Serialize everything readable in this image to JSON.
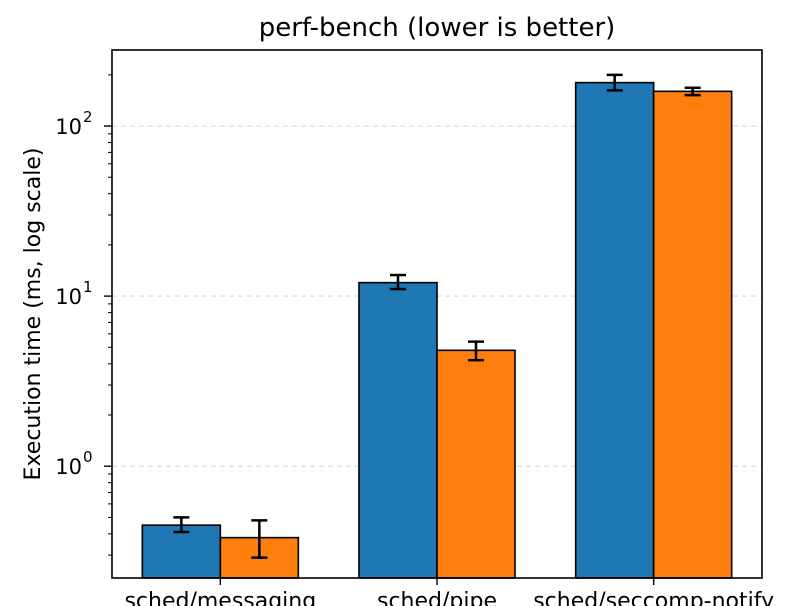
{
  "chart_data": {
    "type": "bar",
    "title": "perf-bench (lower is better)",
    "xlabel": "",
    "ylabel": "Execution time (ms, log scale)",
    "yscale": "log",
    "ylim": [
      0.22,
      280
    ],
    "yticks": [
      {
        "value": 1,
        "base": "10",
        "exp": "0"
      },
      {
        "value": 10,
        "base": "10",
        "exp": "1"
      },
      {
        "value": 100,
        "base": "10",
        "exp": "2"
      }
    ],
    "grid": "y-major-dashed",
    "legend": "none",
    "categories": [
      "sched/messaging",
      "sched/pipe",
      "sched/seccomp-notify"
    ],
    "series": [
      {
        "color": "#1f77b4",
        "values": [
          0.45,
          12,
          180
        ],
        "err_low": [
          0.41,
          11.0,
          162
        ],
        "err_high": [
          0.5,
          13.3,
          200
        ]
      },
      {
        "color": "#ff7f0e",
        "values": [
          0.38,
          4.8,
          160
        ],
        "err_low": [
          0.29,
          4.2,
          152
        ],
        "err_high": [
          0.48,
          5.4,
          168
        ]
      }
    ]
  }
}
